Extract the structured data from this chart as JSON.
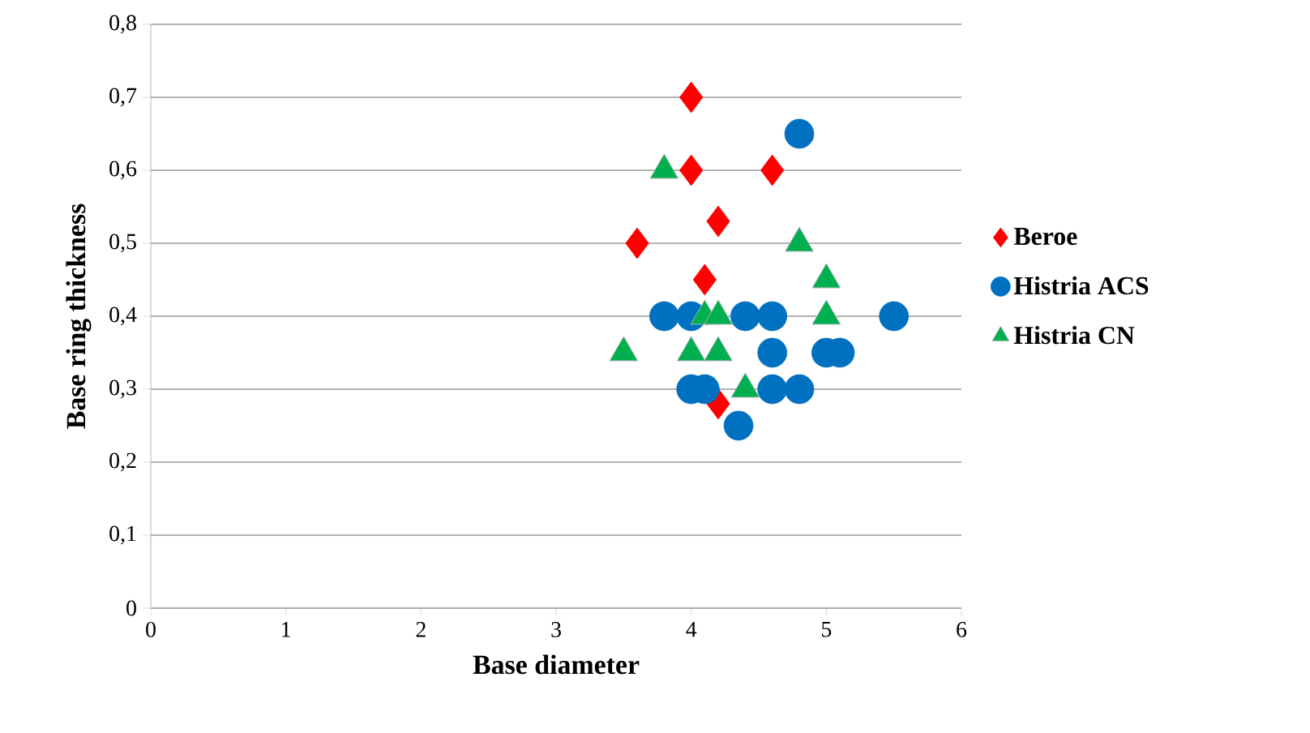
{
  "chart_data": {
    "type": "scatter",
    "xlabel": "Base diameter",
    "ylabel": "Base ring thickness",
    "xlim": [
      0,
      6
    ],
    "xticks": [
      0,
      1,
      2,
      3,
      4,
      5,
      6
    ],
    "ylim": [
      0,
      0.8
    ],
    "yticks": [
      {
        "value": 0,
        "label": "0"
      },
      {
        "value": 0.1,
        "label": "0,1"
      },
      {
        "value": 0.2,
        "label": "0,2"
      },
      {
        "value": 0.3,
        "label": "0,3"
      },
      {
        "value": 0.4,
        "label": "0,4"
      },
      {
        "value": 0.5,
        "label": "0,5"
      },
      {
        "value": 0.6,
        "label": "0,6"
      },
      {
        "value": 0.7,
        "label": "0,7"
      },
      {
        "value": 0.8,
        "label": "0,8"
      }
    ],
    "grid": "y",
    "legend": "right",
    "series": [
      {
        "name": "Beroe",
        "color": "#ff0000",
        "marker": "diamond",
        "x": [
          4.0,
          4.0,
          4.6,
          4.2,
          3.6,
          4.1,
          4.2
        ],
        "values": [
          0.7,
          0.6,
          0.6,
          0.53,
          0.5,
          0.45,
          0.28
        ]
      },
      {
        "name": "Histria ACS",
        "color": "#0070c0",
        "marker": "circle",
        "x": [
          4.8,
          3.8,
          4.0,
          4.4,
          4.6,
          5.5,
          4.6,
          5.0,
          5.1,
          4.0,
          4.1,
          4.6,
          4.8,
          4.35
        ],
        "values": [
          0.65,
          0.4,
          0.4,
          0.4,
          0.4,
          0.4,
          0.35,
          0.35,
          0.35,
          0.3,
          0.3,
          0.3,
          0.3,
          0.25
        ]
      },
      {
        "name": "Histria CN",
        "color": "#00b050",
        "marker": "triangle",
        "x": [
          3.8,
          4.8,
          5.0,
          5.0,
          4.1,
          4.2,
          3.5,
          4.0,
          4.2,
          4.4
        ],
        "values": [
          0.6,
          0.5,
          0.45,
          0.4,
          0.4,
          0.4,
          0.35,
          0.35,
          0.35,
          0.3
        ]
      }
    ]
  }
}
